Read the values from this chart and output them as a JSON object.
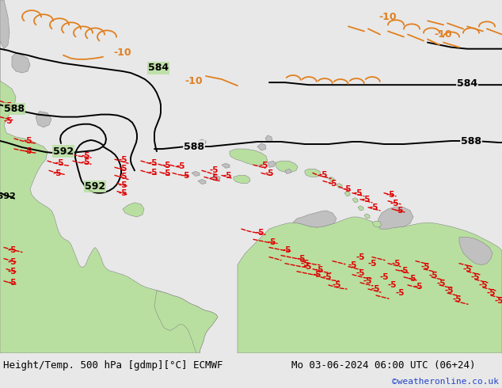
{
  "title_left": "Height/Temp. 500 hPa [gdmp][°C] ECMWF",
  "title_right": "Mo 03-06-2024 06:00 UTC (06+24)",
  "credit": "©weatheronline.co.uk",
  "bg_color": "#e8e8e8",
  "ocean_color": "#e8e8e8",
  "land_green": "#b8dfa0",
  "land_gray": "#c0c0c0",
  "contour_black": "#000000",
  "temp_orange": "#e08020",
  "temp_red": "#dd0000",
  "title_bg": "#c8c8c8",
  "credit_color": "#2244cc",
  "fig_width": 6.34,
  "fig_height": 4.9,
  "dpi": 100
}
